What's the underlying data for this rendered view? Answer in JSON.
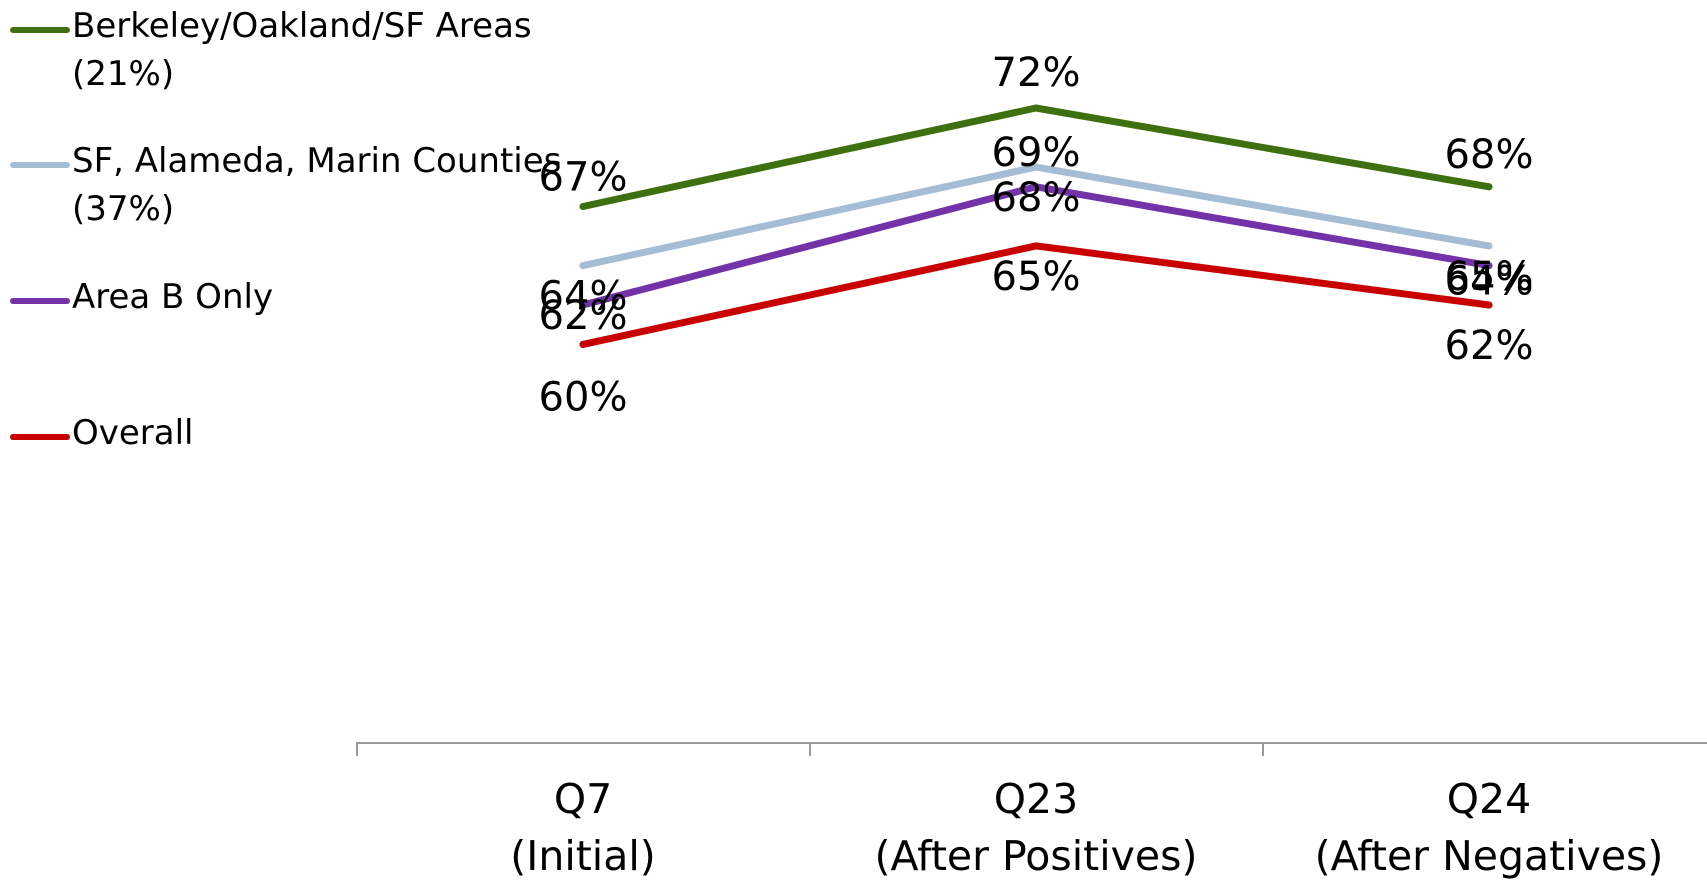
{
  "chart_data": {
    "type": "line",
    "title": "",
    "xlabel": "",
    "ylabel": "",
    "categories": [
      [
        "Q7",
        "(Initial)"
      ],
      [
        "Q23",
        "(After Positives)"
      ],
      [
        "Q24",
        "(After Negatives)"
      ]
    ],
    "series": [
      {
        "name": "Berkeley/Oakland/SF Areas (21%)",
        "color": "#3f7010",
        "values": [
          67,
          72,
          68
        ],
        "labels": [
          "67%",
          "72%",
          "68%"
        ]
      },
      {
        "name": "SF, Alameda, Marin Counties (37%)",
        "color": "#a5bdd4",
        "values": [
          64,
          69,
          65
        ],
        "labels": [
          "64%",
          "69%",
          "65%"
        ]
      },
      {
        "name": "Area B Only",
        "color": "#7432a8",
        "values": [
          62,
          68,
          64
        ],
        "labels": [
          "62%",
          "68%",
          "64%"
        ]
      },
      {
        "name": "Overall",
        "color": "#c80000",
        "values": [
          60,
          65,
          62
        ],
        "labels": [
          "60%",
          "65%",
          "62%"
        ]
      }
    ],
    "legend_position": "top-left",
    "grid": false,
    "axis_color": "#999999"
  }
}
